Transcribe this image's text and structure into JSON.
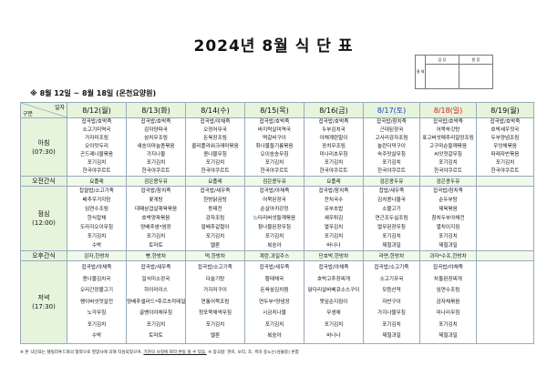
{
  "title": "2024년 8월 식 단 표",
  "approval": {
    "side_label": "결 재",
    "columns": [
      "담 당",
      "원 장"
    ]
  },
  "subtitle": "※ 8월 12일 ~ 8월 18일 (온천요양원)",
  "corner": {
    "top": "일자",
    "bottom": "구분"
  },
  "colors": {
    "header_bg": "#e6f4dc",
    "saturday": "#1f3fbf",
    "sunday": "#d02020",
    "border": "#99aabb"
  },
  "days": [
    {
      "label": "8/12(월)",
      "type": "weekday"
    },
    {
      "label": "8/13(화)",
      "type": "weekday"
    },
    {
      "label": "8/14(수)",
      "type": "weekday"
    },
    {
      "label": "8/15(목)",
      "type": "weekday"
    },
    {
      "label": "8/16(금)",
      "type": "weekday"
    },
    {
      "label": "8/17(토)",
      "type": "saturday"
    },
    {
      "label": "8/18(일)",
      "type": "sunday"
    },
    {
      "label": "8/19(월)",
      "type": "weekday"
    }
  ],
  "rows": [
    {
      "kind": "meal",
      "cls": "morning",
      "label": [
        "아침",
        "(07:30)"
      ],
      "cells": [
        [
          "잡곡밥/호박죽",
          "소고기미역국",
          "가자미조림",
          "오이맛두리",
          "곤드레나물볶음",
          "포기김치",
          "한국야쿠르트"
        ],
        [
          "잡곡밥/호박죽",
          "감자양파국",
          "삼치무조림",
          "새송이마늘종볶음",
          "가지나물",
          "포기김치",
          "한국야쿠르트"
        ],
        [
          "잡곡밥/야채죽",
          "오징어무국",
          "돈육장조림",
          "콜리플라워크래미볶음",
          "콩나물무침",
          "포기김치",
          "한국야쿠르트"
        ],
        [
          "잡곡밥/호박죽",
          "바지락살미역국",
          "떡갈비구이",
          "취나물들기름볶음",
          "오이송송무침",
          "포기김치",
          "한국야쿠르트"
        ],
        [
          "잡곡밥/호박죽",
          "두부김치국",
          "야채계란말이",
          "꽁치무조림",
          "미나리초무침",
          "포기김치",
          "한국야쿠르트"
        ],
        [
          "잡곡밥/참치죽",
          "근대된장국",
          "고사리감자조림",
          "놀란더덕구이",
          "숙주맛살무침",
          "포기김치",
          "한국야쿠르트"
        ],
        [
          "잡곡밥/호박죽",
          "어묵쑥갓탕",
          "표고버섯메추리알장조림",
          "고구마순들깨볶음",
          "씨앗젓갈무침",
          "포기김치",
          "한국야쿠르트"
        ],
        [
          "잡곡밥/호박죽",
          "호박새우젓국",
          "두부양념조림",
          "우엉채볶음",
          "파래자반볶음",
          "포기김치",
          "한국야쿠르트"
        ]
      ]
    },
    {
      "kind": "snack",
      "label": [
        "오전간식"
      ],
      "cells": [
        "요플레",
        "검은콩두유",
        "요플레",
        "검은콩두유",
        "요플레",
        "검은콩두유",
        "검은콩두유",
        ""
      ]
    },
    {
      "kind": "meal",
      "cls": "lunch",
      "label": [
        "점심",
        "(12:00)"
      ],
      "cells": [
        [
          "찹쌀밥/소고기죽",
          "배추우거지탕",
          "임연수조림",
          "한식잡채",
          "도라지오이무침",
          "포기김치",
          "수박"
        ],
        [
          "잡곡밥/참치죽",
          "꽃게탕",
          "대패삼겹살제육볶음",
          "호박양파볶음",
          "양배추쌈*쌈장",
          "포기김치",
          "토마토"
        ],
        [
          "잡곡밥/새우죽",
          "한방닭곰탕",
          "동태전",
          "감자조림",
          "얼배추겉절이",
          "포기김치",
          "멜론"
        ],
        [
          "잡곡밥/야채죽",
          "어묵된장국",
          "순살아귀강정",
          "느타리버섯들깨볶음",
          "참나물된장무침",
          "포기김치",
          "복숭아"
        ],
        [
          "잡곡밥/참치죽",
          "잔치국수",
          "유부초밥",
          "새우튀김",
          "열무김치",
          "포기김치",
          "바나나"
        ],
        [
          "찹밥/새우죽",
          "김치콩나물국",
          "소불고기",
          "연근조두실조림",
          "열무된장무침",
          "포기김치",
          "제철과일"
        ],
        [
          "잡곡밥/참치죽",
          "순두부탕",
          "제육볶음",
          "참치두부야채전",
          "멸치이지짐",
          "포기김치",
          "제철과일"
        ],
        []
      ]
    },
    {
      "kind": "snack",
      "label": [
        "오후간식"
      ],
      "cells": [
        "감자,한방차",
        "빵,한방차",
        "떡,한방차",
        "계란,과일주스",
        "단호박,한방차",
        "라면,한방차",
        "과자*수프,한방차",
        ""
      ]
    },
    {
      "kind": "meal",
      "cls": "dinner",
      "label": [
        "저녁",
        "(17:30)"
      ],
      "cells": [
        [
          "잡곡밥/야채죽",
          "콩나물김치국",
          "오리간장불고기",
          "팽이버섯맛살전",
          "노각무침",
          "포기김치",
          "수박"
        ],
        [
          "잡곡밥/새우죽",
          "일식미소장국",
          "하이라이스",
          "양배추샐러드*후르츠칵테일",
          "골뱅이야채무침",
          "포기김치",
          "토마토"
        ],
        [
          "잡곡밥/소고기죽",
          "다슬기탕",
          "가지미구이",
          "연통어묵조림",
          "청포묵채썩무침",
          "포기김치",
          "멜론"
        ],
        [
          "잡곡밥/새우죽",
          "황태채국",
          "돈육삼김치찜",
          "연두부*양념장",
          "시금치나물",
          "포기김치",
          "복숭아"
        ],
        [
          "잡곡밥/야채죽",
          "호박고추장찌개",
          "닭다리살바베큐소스구이",
          "깻잎순지짐이",
          "무생채",
          "포기김치",
          "바나나"
        ],
        [
          "잡곡밥/소고기죽",
          "소고기무국",
          "모듬산적",
          "자반구이",
          "가지나물무침",
          "포기김치",
          "제철과일"
        ],
        [
          "잡곡밥/야채죽",
          "차돌된장찌개",
          "임연수조림",
          "감자채볶음",
          "미나리무침",
          "포기김치",
          "제철과일"
        ],
        []
      ]
    }
  ],
  "footnote": {
    "part1": "※ 본 식단표는 텔릴라푸드와의 협약으로 영양사에 의해 작성되었으며, ",
    "underlined": "기관의 사정에 따라 변동 될 수 있음.",
    "part2": " ※ 잡곡밥: 현미, 보리, 조, 흑미 중노는(성물중) 혼합"
  }
}
